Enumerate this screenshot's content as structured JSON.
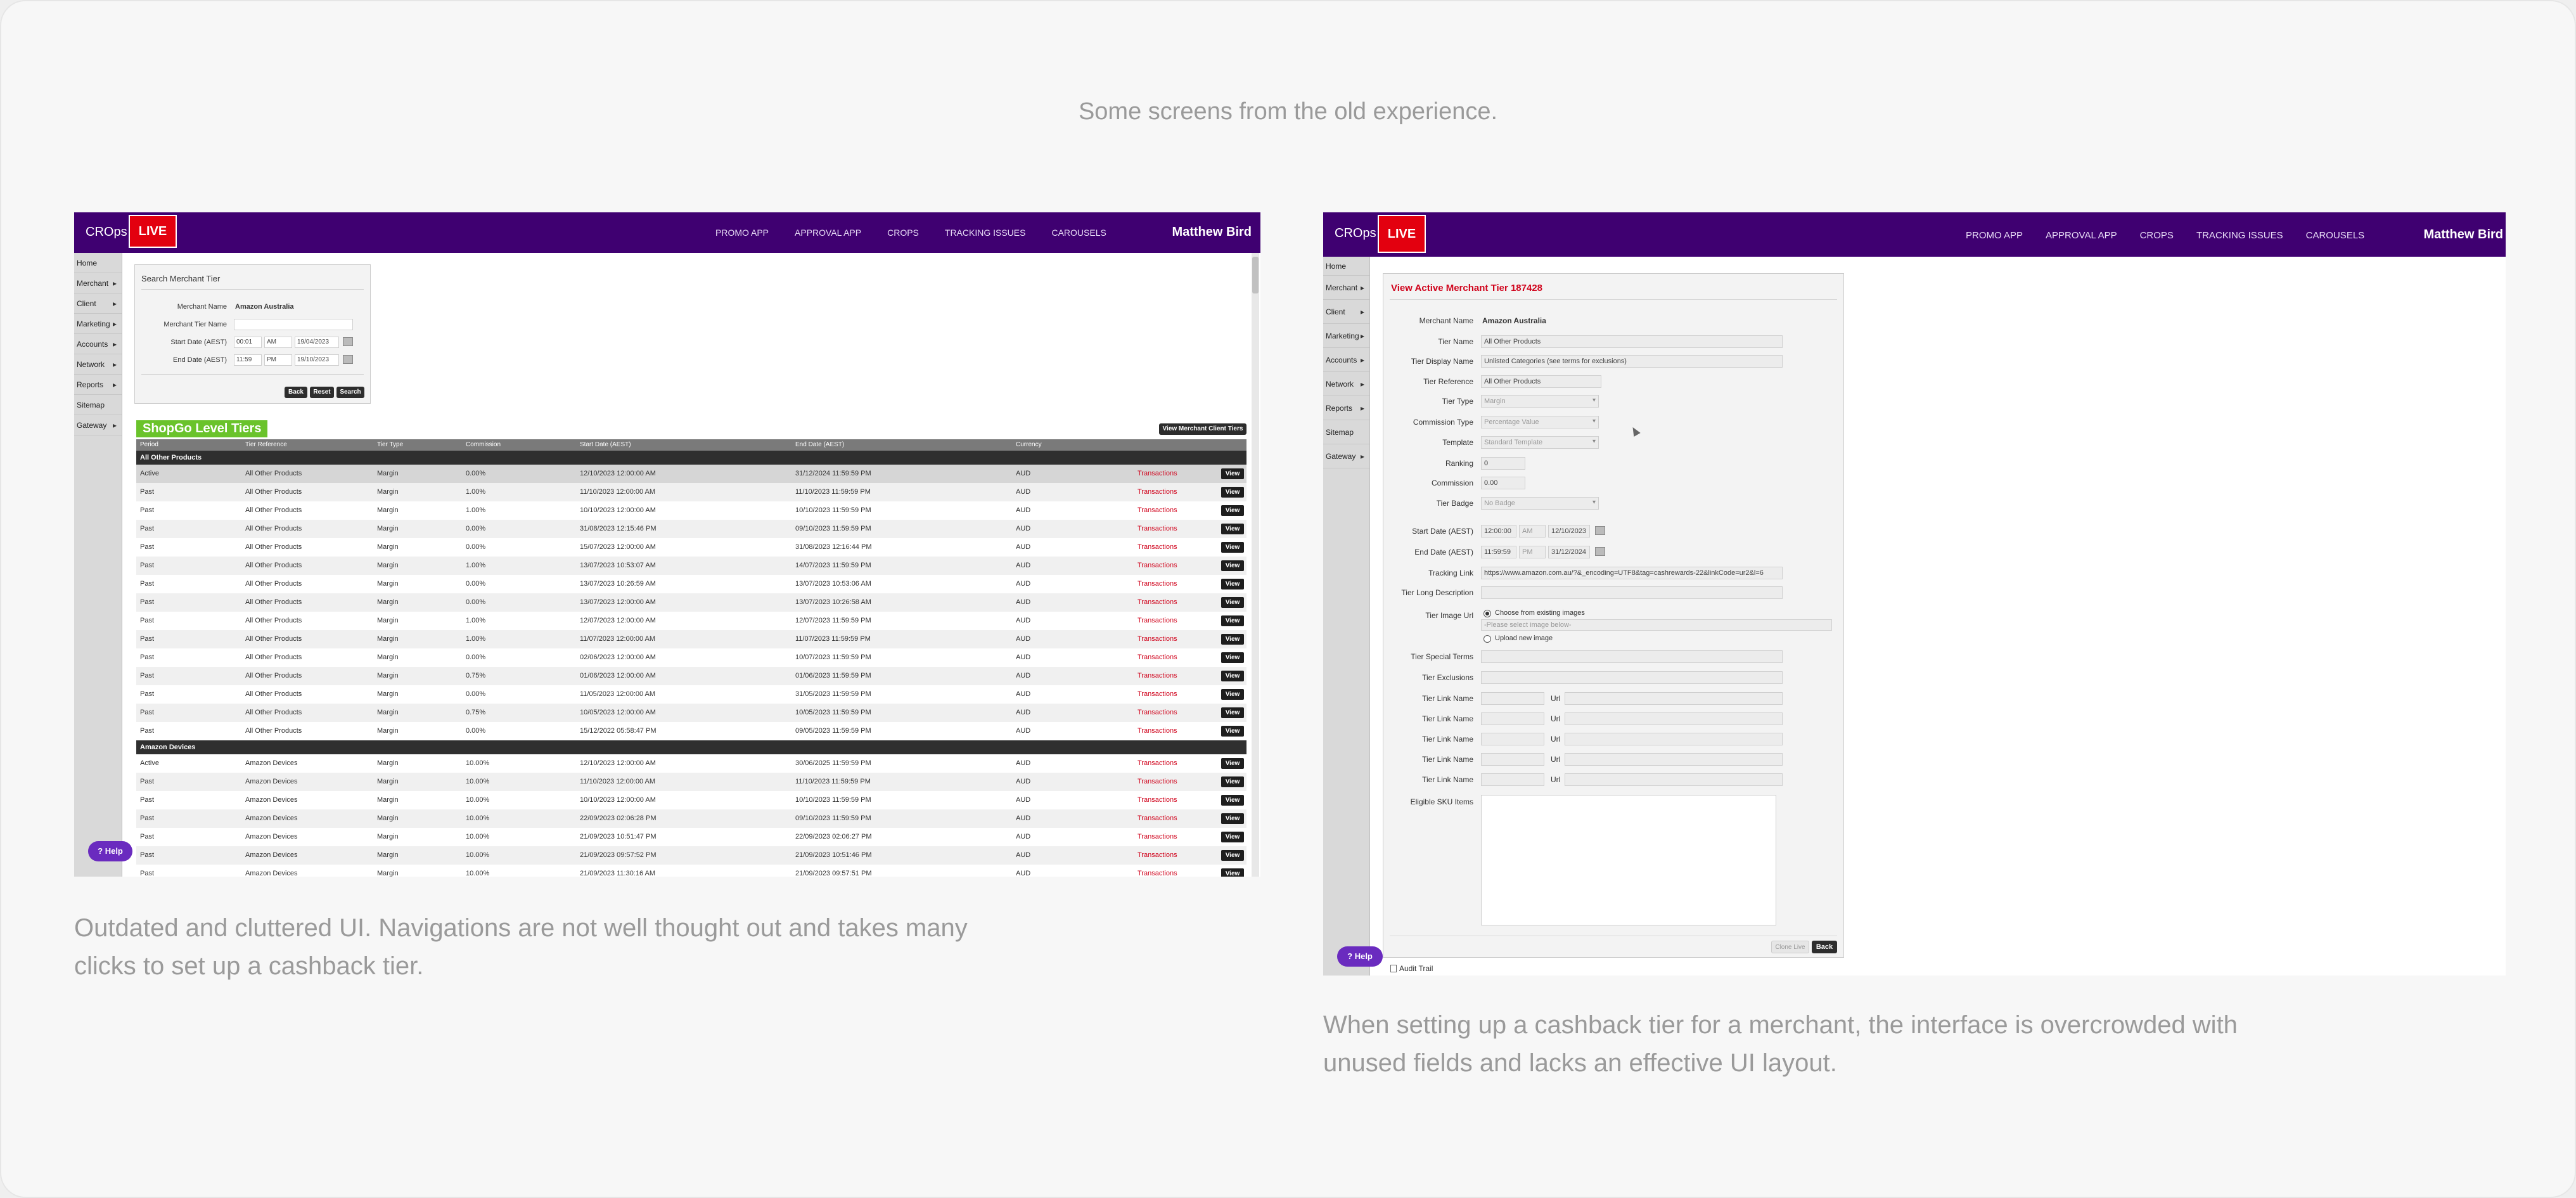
{
  "heading": "Some screens from the old experience.",
  "captions": {
    "left": "Outdated and cluttered UI. Navigations are not well thought out and takes many clicks to set up a cashback tier.",
    "right": "When setting up a cashback tier for a merchant, the interface is overcrowded with unused fields and lacks an effective UI layout."
  },
  "app": {
    "brand": "CROps",
    "live": "LIVE",
    "nav": [
      "PROMO APP",
      "APPROVAL APP",
      "CROPS",
      "TRACKING ISSUES",
      "CAROUSELS"
    ],
    "user": "Matthew Bird",
    "sidebar_home": "Home",
    "sidebar_items": [
      "Merchant",
      "Client",
      "Marketing",
      "Accounts",
      "Network",
      "Reports"
    ],
    "sidebar_sitemap": "Sitemap",
    "sidebar_gateway": "Gateway",
    "help": "Help",
    "colors": {
      "purple": "#3f0071",
      "red": "#e3000f",
      "green": "#6ac32b",
      "help": "#6a2bbf"
    }
  },
  "search": {
    "title": "Search Merchant Tier",
    "merchant_name_label": "Merchant Name",
    "merchant_name_value": "Amazon Australia",
    "tier_name_label": "Merchant Tier Name",
    "start_label": "Start Date (AEST)",
    "start_time": "00:01",
    "start_ampm": "AM",
    "start_date": "19/04/2023",
    "end_label": "End Date (AEST)",
    "end_time": "11:59",
    "end_ampm": "PM",
    "end_date": "19/10/2023",
    "back": "Back",
    "reset": "Reset",
    "search": "Search"
  },
  "tiers": {
    "title": "ShopGo Level Tiers",
    "client_tiers_button": "View Merchant Client Tiers",
    "columns": [
      "Period",
      "Tier Reference",
      "Tier Type",
      "Commission",
      "Start Date (AEST)",
      "End Date (AEST)",
      "Currency"
    ],
    "transactions_label": "Transactions",
    "view_label": "View",
    "groups": [
      {
        "name": "All Other Products",
        "rows": [
          [
            "Active",
            "All Other Products",
            "Margin",
            "0.00%",
            "12/10/2023 12:00:00 AM",
            "31/12/2024 11:59:59 PM",
            "AUD"
          ],
          [
            "Past",
            "All Other Products",
            "Margin",
            "1.00%",
            "11/10/2023 12:00:00 AM",
            "11/10/2023 11:59:59 PM",
            "AUD"
          ],
          [
            "Past",
            "All Other Products",
            "Margin",
            "1.00%",
            "10/10/2023 12:00:00 AM",
            "10/10/2023 11:59:59 PM",
            "AUD"
          ],
          [
            "Past",
            "All Other Products",
            "Margin",
            "0.00%",
            "31/08/2023 12:15:46 PM",
            "09/10/2023 11:59:59 PM",
            "AUD"
          ],
          [
            "Past",
            "All Other Products",
            "Margin",
            "0.00%",
            "15/07/2023 12:00:00 AM",
            "31/08/2023 12:16:44 PM",
            "AUD"
          ],
          [
            "Past",
            "All Other Products",
            "Margin",
            "1.00%",
            "13/07/2023 10:53:07 AM",
            "14/07/2023 11:59:59 PM",
            "AUD"
          ],
          [
            "Past",
            "All Other Products",
            "Margin",
            "0.00%",
            "13/07/2023 10:26:59 AM",
            "13/07/2023 10:53:06 AM",
            "AUD"
          ],
          [
            "Past",
            "All Other Products",
            "Margin",
            "0.00%",
            "13/07/2023 12:00:00 AM",
            "13/07/2023 10:26:58 AM",
            "AUD"
          ],
          [
            "Past",
            "All Other Products",
            "Margin",
            "1.00%",
            "12/07/2023 12:00:00 AM",
            "12/07/2023 11:59:59 PM",
            "AUD"
          ],
          [
            "Past",
            "All Other Products",
            "Margin",
            "1.00%",
            "11/07/2023 12:00:00 AM",
            "11/07/2023 11:59:59 PM",
            "AUD"
          ],
          [
            "Past",
            "All Other Products",
            "Margin",
            "0.00%",
            "02/06/2023 12:00:00 AM",
            "10/07/2023 11:59:59 PM",
            "AUD"
          ],
          [
            "Past",
            "All Other Products",
            "Margin",
            "0.75%",
            "01/06/2023 12:00:00 AM",
            "01/06/2023 11:59:59 PM",
            "AUD"
          ],
          [
            "Past",
            "All Other Products",
            "Margin",
            "0.00%",
            "11/05/2023 12:00:00 AM",
            "31/05/2023 11:59:59 PM",
            "AUD"
          ],
          [
            "Past",
            "All Other Products",
            "Margin",
            "0.75%",
            "10/05/2023 12:00:00 AM",
            "10/05/2023 11:59:59 PM",
            "AUD"
          ],
          [
            "Past",
            "All Other Products",
            "Margin",
            "0.00%",
            "15/12/2022 05:58:47 PM",
            "09/05/2023 11:59:59 PM",
            "AUD"
          ]
        ]
      },
      {
        "name": "Amazon Devices",
        "rows": [
          [
            "Active",
            "Amazon Devices",
            "Margin",
            "10.00%",
            "12/10/2023 12:00:00 AM",
            "30/06/2025 11:59:59 PM",
            "AUD"
          ],
          [
            "Past",
            "Amazon Devices",
            "Margin",
            "10.00%",
            "11/10/2023 12:00:00 AM",
            "11/10/2023 11:59:59 PM",
            "AUD"
          ],
          [
            "Past",
            "Amazon Devices",
            "Margin",
            "10.00%",
            "10/10/2023 12:00:00 AM",
            "10/10/2023 11:59:59 PM",
            "AUD"
          ],
          [
            "Past",
            "Amazon Devices",
            "Margin",
            "10.00%",
            "22/09/2023 02:06:28 PM",
            "09/10/2023 11:59:59 PM",
            "AUD"
          ],
          [
            "Past",
            "Amazon Devices",
            "Margin",
            "10.00%",
            "21/09/2023 10:51:47 PM",
            "22/09/2023 02:06:27 PM",
            "AUD"
          ],
          [
            "Past",
            "Amazon Devices",
            "Margin",
            "10.00%",
            "21/09/2023 09:57:52 PM",
            "21/09/2023 10:51:46 PM",
            "AUD"
          ],
          [
            "Past",
            "Amazon Devices",
            "Margin",
            "10.00%",
            "21/09/2023 11:30:16 AM",
            "21/09/2023 09:57:51 PM",
            "AUD"
          ]
        ]
      }
    ]
  },
  "view_tier": {
    "title": "View Active Merchant Tier 187428",
    "fields": [
      {
        "label": "Merchant Name",
        "value": "Amazon Australia",
        "kind": "text"
      },
      {
        "label": "Tier Name",
        "value": "All Other Products",
        "kind": "field"
      },
      {
        "label": "Tier Display Name",
        "value": "Unlisted Categories (see terms for exclusions)",
        "kind": "field"
      },
      {
        "label": "Tier Reference",
        "value": "All Other Products",
        "kind": "short"
      },
      {
        "label": "Tier Type",
        "value": "Margin",
        "kind": "select"
      },
      {
        "label": "Commission Type",
        "value": "Percentage Value",
        "kind": "select"
      },
      {
        "label": "Template",
        "value": "Standard Template",
        "kind": "select"
      },
      {
        "label": "Ranking",
        "value": "0",
        "kind": "tiny"
      },
      {
        "label": "Commission",
        "value": "0.00",
        "kind": "tiny"
      },
      {
        "label": "Tier Badge",
        "value": "No Badge",
        "kind": "select"
      }
    ],
    "start_label": "Start Date (AEST)",
    "start_time": "12:00:00",
    "start_ampm": "AM",
    "start_date": "12/10/2023",
    "end_label": "End Date (AEST)",
    "end_time": "11:59:59",
    "end_ampm": "PM",
    "end_date": "31/12/2024",
    "tracking_label": "Tracking Link",
    "tracking_value": "https://www.amazon.com.au/?&_encoding=UTF8&tag=cashrewards-22&linkCode=ur2&l=6",
    "long_desc_label": "Tier Long Description",
    "image_label": "Tier Image Url",
    "image_choose": "Choose from existing images",
    "image_placeholder": "-Please select image below-",
    "image_upload": "Upload new image",
    "special_terms_label": "Tier Special Terms",
    "exclusions_label": "Tier Exclusions",
    "link_name_label": "Tier Link Name",
    "url_label": "Url",
    "eligible_label": "Eligible SKU Items",
    "clone_label": "Clone Live",
    "back_label": "Back",
    "audit_label": "Audit Trail"
  }
}
